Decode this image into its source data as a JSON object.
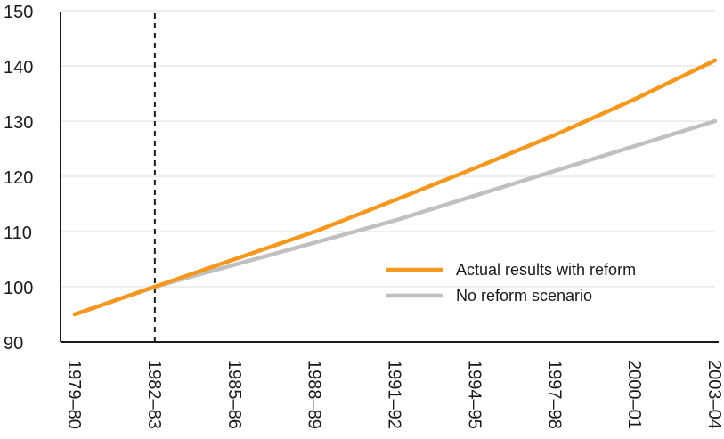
{
  "chart_data": {
    "type": "line",
    "categories": [
      "1979–80",
      "1982–83",
      "1985–86",
      "1988–89",
      "1991–92",
      "1994–95",
      "1997–98",
      "2000–01",
      "2003–04"
    ],
    "ylim": [
      90,
      150
    ],
    "y_ticks": [
      90,
      100,
      110,
      120,
      130,
      140,
      150
    ],
    "reference_line_category": "1982–83",
    "grid": "horizontal",
    "legend_position": "bottom-right",
    "series": [
      {
        "name": "Actual results with reform",
        "color": "#f5981f",
        "values": [
          95,
          100,
          105,
          110,
          115.7,
          121.5,
          127.5,
          134,
          141
        ]
      },
      {
        "name": "No reform scenario",
        "color": "#c0c0c0",
        "values": [
          95,
          100,
          104,
          108,
          112,
          116.5,
          121,
          125.5,
          130
        ]
      }
    ]
  }
}
